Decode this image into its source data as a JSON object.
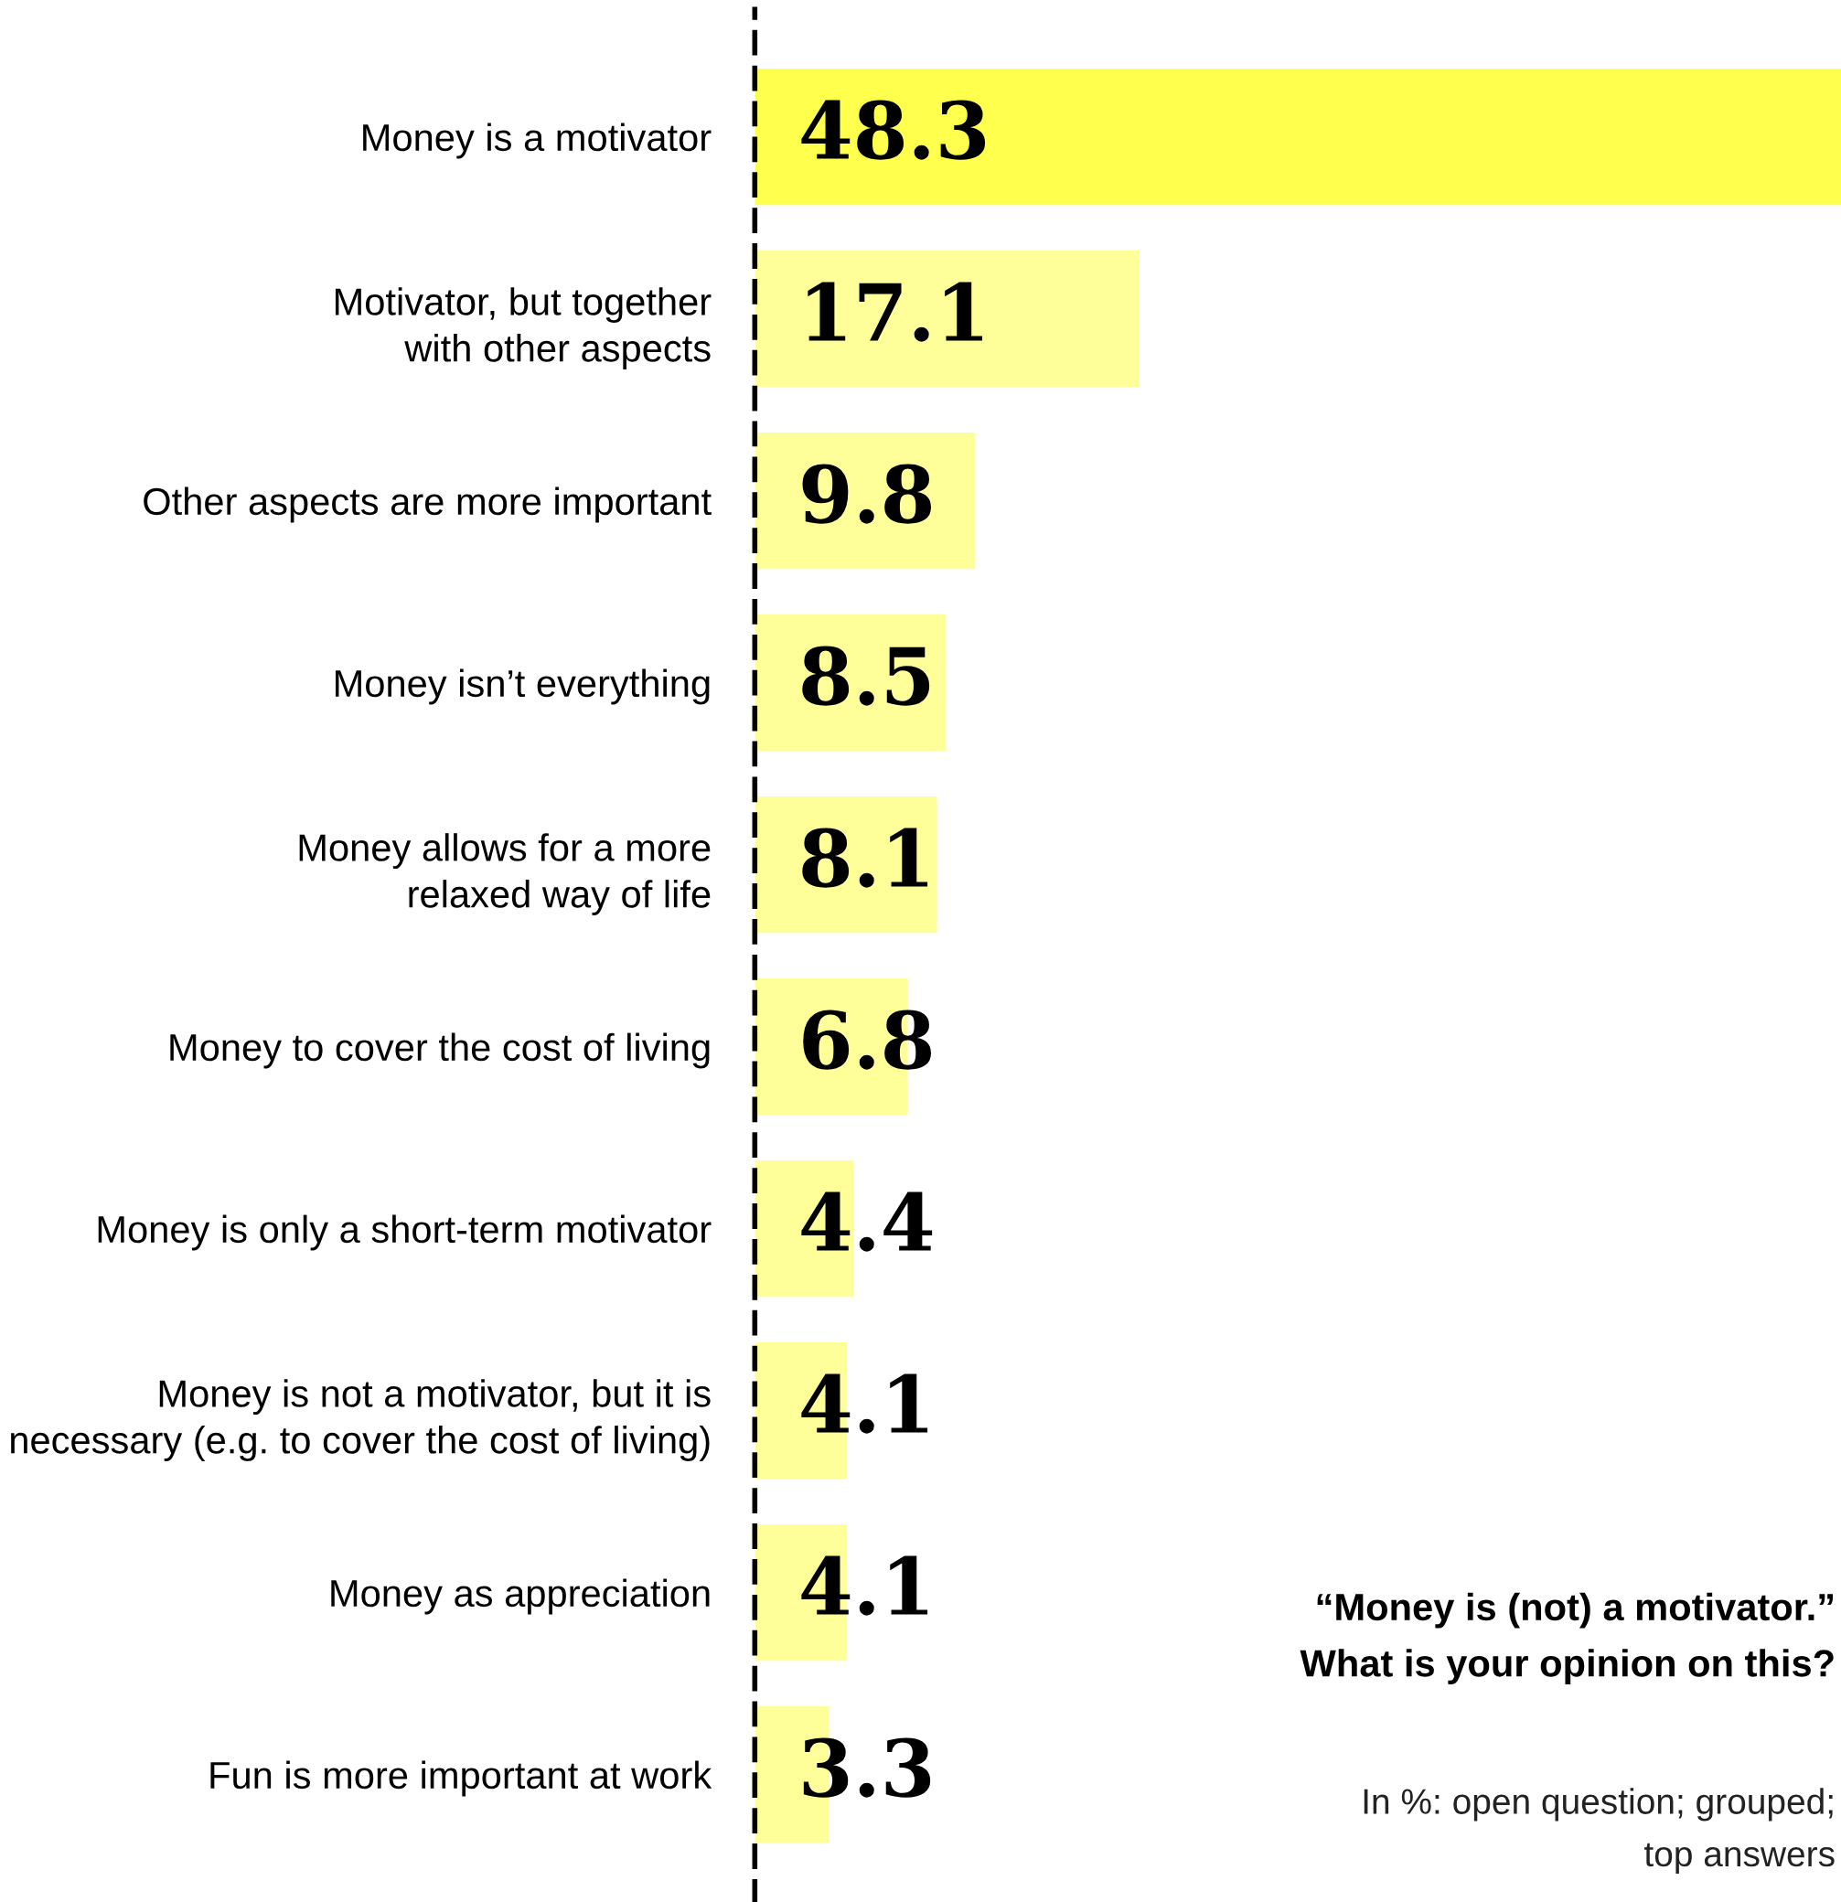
{
  "chart_data": {
    "type": "bar",
    "orientation": "horizontal",
    "title": "“Money is (not) a motivator.”\nWhat is your opinion on this?",
    "subtitle": "In %: open question; grouped;\ntop answers",
    "categories": [
      "Money is a motivator",
      "Motivator, but together\nwith other aspects",
      "Other aspects are more important",
      "Money isn’t everything",
      "Money allows for a more\nrelaxed way of life",
      "Money to cover the cost of living",
      "Money is only a short-term motivator",
      "Money is not a motivator, but it is\nnecessary (e.g. to cover the cost of living)",
      "Money as appreciation",
      "Fun is more important at work"
    ],
    "values": [
      48.3,
      17.1,
      9.8,
      8.5,
      8.1,
      6.8,
      4.4,
      4.1,
      4.1,
      3.3
    ],
    "colors": [
      "#ffff4d",
      "#ffff99",
      "#ffff99",
      "#ffff99",
      "#ffff99",
      "#ffff99",
      "#ffff99",
      "#ffff99",
      "#ffff99",
      "#ffff99"
    ],
    "data_labels": true,
    "grid": false,
    "legend": false
  }
}
